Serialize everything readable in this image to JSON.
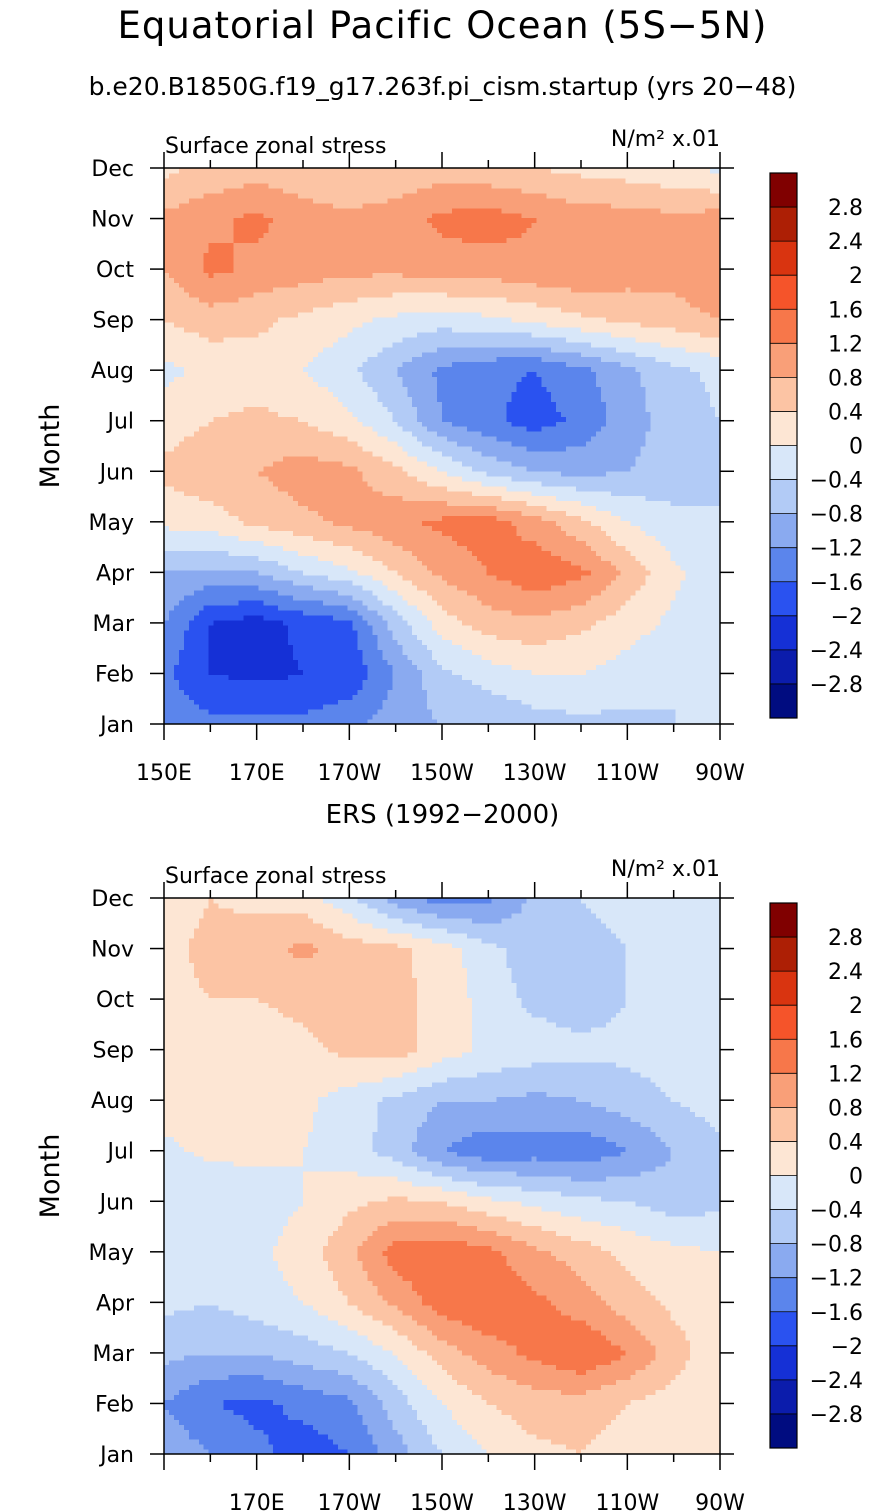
{
  "title": "Equatorial Pacific Ocean (5S−5N)",
  "subtitle": "b.e20.B1850G.f19_g17.263f.pi_cism.startup (yrs 20−48)",
  "colorbar": {
    "levels": [
      "2.8",
      "2.4",
      "2",
      "1.6",
      "1.2",
      "0.8",
      "0.4",
      "0",
      "−0.4",
      "−0.8",
      "−1.2",
      "−1.6",
      "−2",
      "−2.4",
      "−2.8"
    ],
    "colors": [
      "#800000",
      "#ad1f05",
      "#d93410",
      "#f5542a",
      "#f7774a",
      "#f99f78",
      "#fcc4a4",
      "#fde6d4",
      "#d8e7f9",
      "#b2cbf6",
      "#8aaaf0",
      "#5b85ec",
      "#2a52f0",
      "#1530d6",
      "#0b1cac",
      "#000c80"
    ]
  },
  "chart_data": [
    {
      "type": "heatmap",
      "title": "",
      "left_label": "Surface zonal stress",
      "right_label": "N/m² x.01",
      "xlabel": "",
      "ylabel": "Month",
      "x_tick_labels": [
        "150E",
        "170E",
        "170W",
        "150W",
        "130W",
        "110W",
        "90W"
      ],
      "y_tick_labels": [
        "Jan",
        "Feb",
        "Mar",
        "Apr",
        "May",
        "Jun",
        "Jul",
        "Aug",
        "Sep",
        "Oct",
        "Nov",
        "Dec"
      ],
      "xlim": [
        150,
        270
      ],
      "x_grid": [
        150,
        160,
        170,
        180,
        190,
        200,
        210,
        220,
        230,
        240,
        250,
        260,
        270
      ],
      "y_grid": [
        "Jan",
        "Feb",
        "Mar",
        "Apr",
        "May",
        "Jun",
        "Jul",
        "Aug",
        "Sep",
        "Oct",
        "Nov",
        "Dec"
      ],
      "z": [
        [
          -1.3,
          -1.5,
          -1.5,
          -1.5,
          -1.3,
          -1.0,
          -0.8,
          -0.8,
          -0.6,
          -0.5,
          -0.5,
          -0.4,
          -0.4
        ],
        [
          -1.5,
          -2.0,
          -2.1,
          -2.0,
          -1.9,
          -1.2,
          -0.5,
          -0.2,
          0.0,
          0.0,
          -0.2,
          -0.4,
          -0.4
        ],
        [
          -1.2,
          -2.0,
          -2.2,
          -1.9,
          -1.7,
          -0.6,
          0.2,
          0.6,
          0.7,
          0.5,
          0.2,
          -0.1,
          -0.3
        ],
        [
          -0.8,
          -0.9,
          -0.8,
          -0.4,
          -0.1,
          0.4,
          0.9,
          1.2,
          1.5,
          1.3,
          0.7,
          0.1,
          -0.3
        ],
        [
          0.1,
          0.2,
          0.5,
          0.7,
          0.9,
          1.1,
          1.3,
          1.4,
          1.0,
          0.5,
          0.0,
          -0.3,
          -0.4
        ],
        [
          0.5,
          0.7,
          0.8,
          1.0,
          0.9,
          0.5,
          0.0,
          -0.5,
          -0.8,
          -0.9,
          -0.8,
          -0.6,
          -0.4
        ],
        [
          0.2,
          0.4,
          0.5,
          0.4,
          0.1,
          -0.4,
          -1.2,
          -1.5,
          -1.8,
          -1.5,
          -1.0,
          -0.6,
          -0.4
        ],
        [
          -0.1,
          0.1,
          0.2,
          0.0,
          -0.3,
          -0.8,
          -1.3,
          -1.5,
          -1.6,
          -1.3,
          -0.9,
          -0.5,
          -0.3
        ],
        [
          0.4,
          0.6,
          0.5,
          0.3,
          0.1,
          -0.1,
          -0.2,
          -0.1,
          0.1,
          0.3,
          0.5,
          0.6,
          0.8
        ],
        [
          0.8,
          1.3,
          1.1,
          1.0,
          0.9,
          0.9,
          1.0,
          1.0,
          1.1,
          1.2,
          1.0,
          1.0,
          1.2
        ],
        [
          0.9,
          1.1,
          1.3,
          1.0,
          0.9,
          1.0,
          1.3,
          1.4,
          1.2,
          1.0,
          1.0,
          0.9,
          1.0
        ],
        [
          0.3,
          0.5,
          0.6,
          0.5,
          0.4,
          0.5,
          0.6,
          0.5,
          0.4,
          0.3,
          0.2,
          0.1,
          -0.1
        ]
      ]
    },
    {
      "type": "heatmap",
      "title": "ERS (1992−2000)",
      "left_label": "Surface zonal stress",
      "right_label": "N/m² x.01",
      "xlabel": "",
      "ylabel": "Month",
      "x_tick_labels": [
        "170E",
        "170W",
        "150W",
        "130W",
        "110W",
        "90W"
      ],
      "y_tick_labels": [
        "Jan",
        "Feb",
        "Mar",
        "Apr",
        "May",
        "Jun",
        "Jul",
        "Aug",
        "Sep",
        "Oct",
        "Nov",
        "Dec"
      ],
      "xlim": [
        150,
        270
      ],
      "x_grid": [
        150,
        160,
        170,
        180,
        190,
        200,
        210,
        220,
        230,
        240,
        250,
        260,
        270
      ],
      "y_grid": [
        "Jan",
        "Feb",
        "Mar",
        "Apr",
        "May",
        "Jun",
        "Jul",
        "Aug",
        "Sep",
        "Oct",
        "Nov",
        "Dec"
      ],
      "z": [
        [
          -0.9,
          -1.2,
          -1.5,
          -1.8,
          -1.6,
          -1.0,
          -0.4,
          0.0,
          0.3,
          0.4,
          0.2,
          0.1,
          0.0
        ],
        [
          -1.2,
          -1.6,
          -1.7,
          -1.5,
          -1.3,
          -0.6,
          0.0,
          0.4,
          0.6,
          0.6,
          0.4,
          0.2,
          0.0
        ],
        [
          -0.7,
          -0.8,
          -0.8,
          -0.6,
          -0.4,
          0.0,
          0.6,
          1.0,
          1.3,
          1.6,
          1.2,
          0.6,
          0.1
        ],
        [
          -0.3,
          -0.4,
          -0.2,
          0.0,
          0.4,
          0.9,
          1.4,
          1.6,
          1.3,
          1.0,
          0.6,
          0.3,
          0.1
        ],
        [
          -0.3,
          -0.3,
          -0.1,
          0.2,
          0.7,
          1.4,
          1.5,
          1.3,
          0.9,
          0.6,
          0.3,
          0.1,
          0.0
        ],
        [
          -0.2,
          -0.4,
          -0.2,
          0.0,
          0.3,
          0.5,
          0.4,
          0.1,
          -0.1,
          -0.3,
          -0.4,
          -0.6,
          -0.5
        ],
        [
          -0.1,
          0.1,
          0.1,
          0.0,
          -0.2,
          -0.6,
          -1.2,
          -1.5,
          -1.4,
          -1.5,
          -1.2,
          -0.8,
          -0.5
        ],
        [
          0.2,
          0.3,
          0.2,
          0.1,
          -0.2,
          -0.5,
          -0.8,
          -0.8,
          -0.9,
          -0.8,
          -0.6,
          -0.4,
          -0.2
        ],
        [
          0.3,
          0.4,
          0.2,
          0.3,
          0.5,
          0.6,
          0.2,
          -0.1,
          -0.2,
          -0.3,
          -0.3,
          -0.2,
          -0.1
        ],
        [
          0.3,
          0.4,
          0.4,
          0.5,
          0.6,
          0.5,
          0.3,
          -0.2,
          -0.5,
          -0.6,
          -0.4,
          -0.2,
          0.0
        ],
        [
          0.3,
          0.5,
          0.6,
          0.9,
          0.6,
          0.5,
          0.2,
          -0.3,
          -0.6,
          -0.6,
          -0.4,
          -0.2,
          0.0
        ],
        [
          0.2,
          0.4,
          0.3,
          0.2,
          -0.3,
          -1.0,
          -1.4,
          -1.3,
          -0.7,
          -0.4,
          -0.2,
          -0.1,
          0.0
        ]
      ]
    }
  ]
}
